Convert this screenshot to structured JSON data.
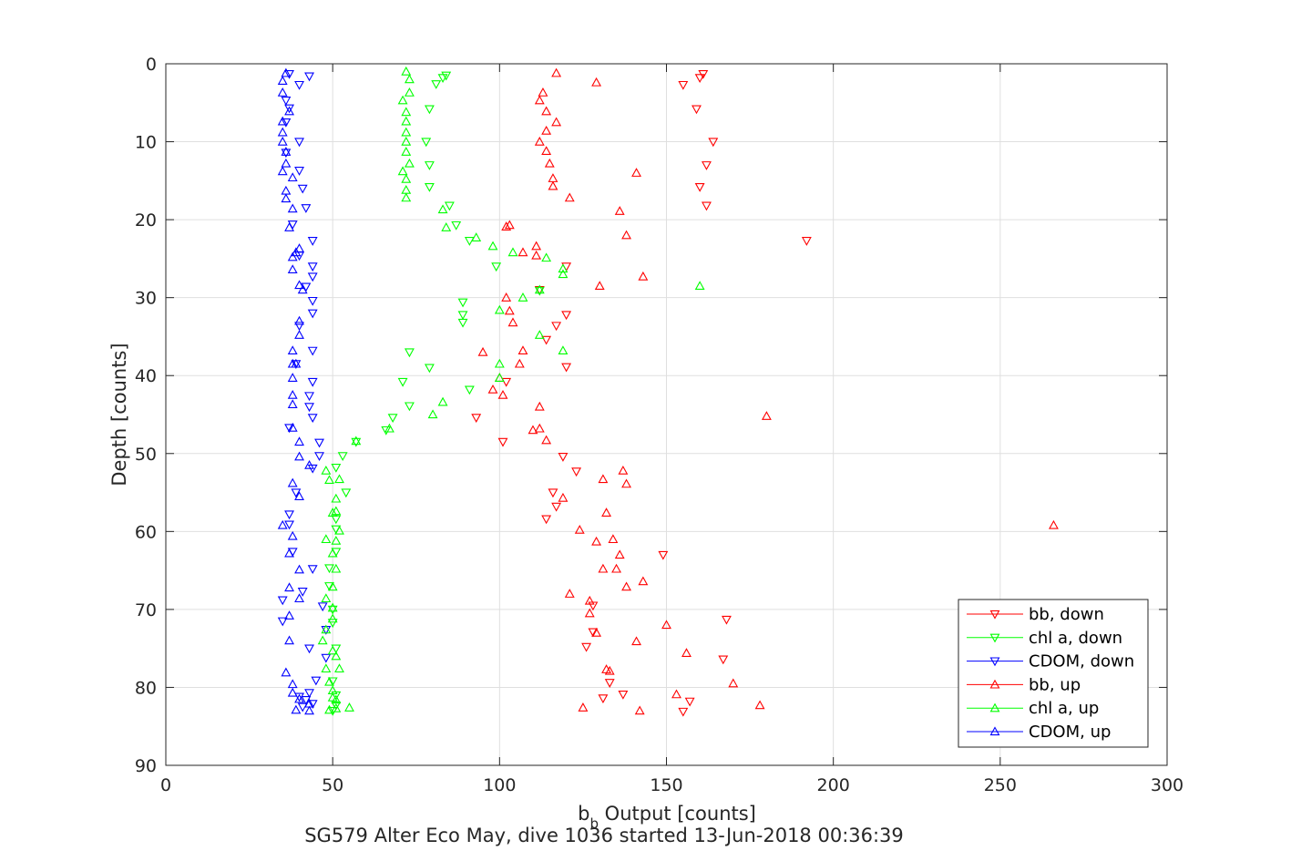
{
  "chart_data": {
    "type": "scatter",
    "xlabel": "b",
    "xlabel_subscript": "b",
    "xlabel_rest": " Output [counts]",
    "ylabel": "Depth [counts]",
    "caption": "SG579 Alter Eco May, dive 1036 started 13-Jun-2018 00:36:39",
    "xlim": [
      0,
      300
    ],
    "ylim": [
      0,
      90
    ],
    "y_reversed": true,
    "grid": true,
    "legend_position": "bottom-right",
    "xticks": [
      0,
      50,
      100,
      150,
      200,
      250,
      300
    ],
    "yticks": [
      0,
      10,
      20,
      30,
      40,
      50,
      60,
      70,
      80,
      90
    ],
    "xtick_labels": [
      "0",
      "50",
      "100",
      "150",
      "200",
      "250",
      "300"
    ],
    "ytick_labels": [
      "0",
      "10",
      "20",
      "30",
      "40",
      "50",
      "60",
      "70",
      "80",
      "90"
    ],
    "series": [
      {
        "name": "bb, down",
        "marker": "triangle-down",
        "color": "#ff0000",
        "points": [
          [
            161,
            1.3
          ],
          [
            160,
            1.8
          ],
          [
            155,
            2.7
          ],
          [
            159,
            5.8
          ],
          [
            164,
            10
          ],
          [
            162,
            13
          ],
          [
            160,
            15.8
          ],
          [
            162,
            18.2
          ],
          [
            192,
            22.7
          ],
          [
            120,
            26
          ],
          [
            112,
            29
          ],
          [
            117,
            33.6
          ],
          [
            114,
            35.4
          ],
          [
            120,
            38.9
          ],
          [
            102,
            40.8
          ],
          [
            93,
            45.4
          ],
          [
            101,
            48.5
          ],
          [
            119,
            50.4
          ],
          [
            123,
            52.3
          ],
          [
            116,
            55
          ],
          [
            117,
            56.8
          ],
          [
            114,
            58.4
          ],
          [
            149,
            63
          ],
          [
            128,
            69.5
          ],
          [
            168,
            71.3
          ],
          [
            167,
            76.4
          ],
          [
            157,
            81.8
          ],
          [
            155,
            83.1
          ],
          [
            137,
            80.9
          ],
          [
            131,
            81.4
          ],
          [
            133,
            79.4
          ],
          [
            120,
            32.2
          ],
          [
            128,
            72.9
          ],
          [
            126,
            74.8
          ]
        ]
      },
      {
        "name": "chl a, down",
        "marker": "triangle-down",
        "color": "#00ff00",
        "points": [
          [
            84,
            1.5
          ],
          [
            83,
            1.8
          ],
          [
            81,
            2.6
          ],
          [
            79,
            5.8
          ],
          [
            78,
            10
          ],
          [
            79,
            13
          ],
          [
            79,
            15.8
          ],
          [
            85,
            18.2
          ],
          [
            87,
            20.7
          ],
          [
            91,
            22.7
          ],
          [
            99,
            26
          ],
          [
            112,
            29.1
          ],
          [
            89,
            30.6
          ],
          [
            89,
            32.2
          ],
          [
            89,
            33.2
          ],
          [
            73,
            37
          ],
          [
            79,
            39
          ],
          [
            71,
            40.8
          ],
          [
            91,
            41.8
          ],
          [
            73,
            43.9
          ],
          [
            68,
            45.4
          ],
          [
            66,
            47
          ],
          [
            57,
            48.5
          ],
          [
            53,
            50.3
          ],
          [
            51,
            51.8
          ],
          [
            54,
            55
          ],
          [
            51,
            58.4
          ],
          [
            51,
            59.7
          ],
          [
            51,
            62.6
          ],
          [
            49,
            64.7
          ],
          [
            49,
            67
          ],
          [
            50,
            70
          ],
          [
            50,
            71.7
          ],
          [
            51,
            75
          ],
          [
            50,
            79.2
          ],
          [
            51,
            81
          ],
          [
            51,
            82.3
          ],
          [
            50,
            83
          ]
        ]
      },
      {
        "name": "CDOM, down",
        "marker": "triangle-down",
        "color": "#0000ff",
        "points": [
          [
            37,
            1.3
          ],
          [
            43,
            1.6
          ],
          [
            40,
            2.7
          ],
          [
            36,
            4.7
          ],
          [
            37,
            5.7
          ],
          [
            36,
            7.5
          ],
          [
            40,
            10
          ],
          [
            36,
            11.4
          ],
          [
            40,
            13.7
          ],
          [
            41,
            16
          ],
          [
            42,
            18.5
          ],
          [
            38,
            20.6
          ],
          [
            44,
            22.7
          ],
          [
            40,
            24.6
          ],
          [
            44,
            26
          ],
          [
            44,
            27.3
          ],
          [
            42,
            28.6
          ],
          [
            44,
            30.4
          ],
          [
            44,
            32
          ],
          [
            40,
            33.6
          ],
          [
            44,
            36.8
          ],
          [
            39,
            38.5
          ],
          [
            44,
            40.8
          ],
          [
            43,
            42.6
          ],
          [
            43,
            44
          ],
          [
            44,
            45.4
          ],
          [
            37,
            46.7
          ],
          [
            46,
            48.6
          ],
          [
            46,
            50.3
          ],
          [
            44,
            51.9
          ],
          [
            39,
            55
          ],
          [
            37,
            57.8
          ],
          [
            37,
            59.1
          ],
          [
            38,
            62.6
          ],
          [
            44,
            64.8
          ],
          [
            41,
            67.7
          ],
          [
            35,
            68.8
          ],
          [
            47,
            69.6
          ],
          [
            35,
            71.5
          ],
          [
            48,
            72.6
          ],
          [
            43,
            75
          ],
          [
            48,
            76.2
          ],
          [
            45,
            79.1
          ],
          [
            43,
            80.7
          ],
          [
            42,
            81.6
          ],
          [
            44,
            82.1
          ],
          [
            41,
            82.5
          ],
          [
            40,
            81.2
          ]
        ]
      },
      {
        "name": "bb, up",
        "marker": "triangle-up",
        "color": "#ff0000",
        "points": [
          [
            117,
            1.2
          ],
          [
            129,
            2.4
          ],
          [
            113,
            3.7
          ],
          [
            112,
            4.7
          ],
          [
            114,
            6.1
          ],
          [
            117,
            7.5
          ],
          [
            114,
            8.6
          ],
          [
            112,
            10
          ],
          [
            114,
            11.2
          ],
          [
            115,
            12.8
          ],
          [
            141,
            14
          ],
          [
            116,
            14.7
          ],
          [
            116,
            15.7
          ],
          [
            121,
            17.2
          ],
          [
            136,
            18.9
          ],
          [
            103,
            20.7
          ],
          [
            102,
            20.9
          ],
          [
            138,
            22
          ],
          [
            111,
            23.4
          ],
          [
            107,
            24.2
          ],
          [
            111,
            24.6
          ],
          [
            143,
            27.3
          ],
          [
            130,
            28.5
          ],
          [
            102,
            30
          ],
          [
            103,
            31.7
          ],
          [
            104,
            33.2
          ],
          [
            95,
            37
          ],
          [
            107,
            36.8
          ],
          [
            106,
            38.5
          ],
          [
            100,
            40.3
          ],
          [
            98,
            41.8
          ],
          [
            101,
            42.5
          ],
          [
            112,
            44
          ],
          [
            180,
            45.2
          ],
          [
            110,
            47
          ],
          [
            112,
            46.8
          ],
          [
            114,
            48.3
          ],
          [
            137,
            52.2
          ],
          [
            131,
            53.3
          ],
          [
            138,
            53.9
          ],
          [
            119,
            55.7
          ],
          [
            132,
            57.6
          ],
          [
            266,
            59.2
          ],
          [
            124,
            59.8
          ],
          [
            129,
            61.3
          ],
          [
            134,
            61
          ],
          [
            136,
            63
          ],
          [
            131,
            64.8
          ],
          [
            135,
            64.8
          ],
          [
            138,
            67.1
          ],
          [
            143,
            66.4
          ],
          [
            121,
            68
          ],
          [
            127,
            68.9
          ],
          [
            127,
            70.5
          ],
          [
            150,
            72
          ],
          [
            129,
            73
          ],
          [
            141,
            74.1
          ],
          [
            156,
            75.6
          ],
          [
            132,
            77.7
          ],
          [
            133,
            77.9
          ],
          [
            170,
            79.5
          ],
          [
            153,
            80.9
          ],
          [
            178,
            82.3
          ],
          [
            125,
            82.6
          ],
          [
            142,
            83
          ]
        ]
      },
      {
        "name": "chl a, up",
        "marker": "triangle-up",
        "color": "#00ff00",
        "points": [
          [
            72,
            1
          ],
          [
            73,
            2
          ],
          [
            73,
            3.7
          ],
          [
            71,
            4.7
          ],
          [
            72,
            6.2
          ],
          [
            72,
            7.4
          ],
          [
            72,
            8.8
          ],
          [
            72,
            10
          ],
          [
            72,
            11.3
          ],
          [
            73,
            12.8
          ],
          [
            71,
            13.8
          ],
          [
            72,
            14.8
          ],
          [
            72,
            16.2
          ],
          [
            72,
            17.2
          ],
          [
            83,
            18.7
          ],
          [
            84,
            21
          ],
          [
            93,
            22.3
          ],
          [
            98,
            23.4
          ],
          [
            104,
            24.2
          ],
          [
            114,
            24.9
          ],
          [
            119,
            26.3
          ],
          [
            119,
            27
          ],
          [
            160,
            28.5
          ],
          [
            107,
            30
          ],
          [
            112,
            29
          ],
          [
            100,
            31.6
          ],
          [
            112,
            34.8
          ],
          [
            119,
            36.8
          ],
          [
            100,
            38.5
          ],
          [
            100,
            40.3
          ],
          [
            83,
            43.4
          ],
          [
            80,
            45
          ],
          [
            67,
            46.8
          ],
          [
            57,
            48.4
          ],
          [
            48,
            52.2
          ],
          [
            52,
            53.3
          ],
          [
            49,
            53.4
          ],
          [
            51,
            55.8
          ],
          [
            50,
            57.6
          ],
          [
            51,
            57.4
          ],
          [
            52,
            59.9
          ],
          [
            48,
            61
          ],
          [
            51,
            61.2
          ],
          [
            50,
            62.8
          ],
          [
            51,
            64.8
          ],
          [
            50,
            67.1
          ],
          [
            48,
            68.6
          ],
          [
            50,
            69.8
          ],
          [
            50,
            71.2
          ],
          [
            48,
            72.6
          ],
          [
            47,
            74
          ],
          [
            50,
            75.3
          ],
          [
            51,
            76
          ],
          [
            48,
            77.6
          ],
          [
            52,
            77.6
          ],
          [
            49,
            79.3
          ],
          [
            50,
            80.4
          ],
          [
            50,
            81.3
          ],
          [
            51,
            81.6
          ],
          [
            55,
            82.6
          ],
          [
            51,
            82.7
          ],
          [
            49,
            82.9
          ]
        ]
      },
      {
        "name": "CDOM, up",
        "marker": "triangle-up",
        "color": "#0000ff",
        "points": [
          [
            36,
            1.2
          ],
          [
            35,
            2.2
          ],
          [
            35,
            3.7
          ],
          [
            37,
            6.1
          ],
          [
            35,
            7.4
          ],
          [
            35,
            8.8
          ],
          [
            35,
            10
          ],
          [
            36,
            11.3
          ],
          [
            36,
            12.8
          ],
          [
            35,
            13.8
          ],
          [
            38,
            14.6
          ],
          [
            36,
            16.3
          ],
          [
            36,
            17.3
          ],
          [
            38,
            18.6
          ],
          [
            37,
            21
          ],
          [
            40,
            23.7
          ],
          [
            39,
            24.2
          ],
          [
            38,
            24.8
          ],
          [
            38,
            26.4
          ],
          [
            40,
            28.4
          ],
          [
            41,
            29
          ],
          [
            40,
            34.8
          ],
          [
            40,
            33
          ],
          [
            38,
            36.8
          ],
          [
            38,
            38.5
          ],
          [
            39,
            38.5
          ],
          [
            38,
            40.3
          ],
          [
            38,
            42.5
          ],
          [
            38,
            43.7
          ],
          [
            38,
            46.7
          ],
          [
            40,
            48.5
          ],
          [
            40,
            50.4
          ],
          [
            43,
            51.5
          ],
          [
            38,
            53.8
          ],
          [
            40,
            55.5
          ],
          [
            35,
            59.2
          ],
          [
            38,
            60.6
          ],
          [
            37,
            62.8
          ],
          [
            40,
            64.9
          ],
          [
            37,
            67.2
          ],
          [
            40,
            68.6
          ],
          [
            37,
            70.8
          ],
          [
            37,
            74
          ],
          [
            36,
            78.1
          ],
          [
            38,
            79.6
          ],
          [
            38,
            80.7
          ],
          [
            40,
            81.5
          ],
          [
            43,
            82.1
          ],
          [
            39,
            82.9
          ],
          [
            43,
            83
          ]
        ]
      }
    ]
  }
}
